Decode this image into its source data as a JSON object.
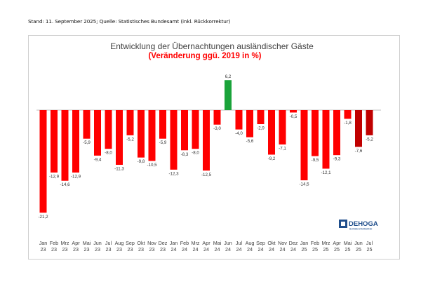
{
  "note": "Stand: 11. September 2025; Quelle: Statistisches Bundesamt (inkl. Rückkorrektur)",
  "logo": {
    "name": "DEHOGA",
    "sub": "BUNDESVERBAND"
  },
  "colors": {
    "negative": "#ff0000",
    "negative_dark": "#c00000",
    "positive": "#1aa33a",
    "title": "#404040",
    "subtitle": "#ff0000"
  },
  "chart_data": {
    "type": "bar",
    "title": "Entwicklung der Übernachtungen ausländischer Gäste",
    "subtitle": "(Veränderung ggü. 2019 in %)",
    "categories": [
      [
        "Jan",
        "23"
      ],
      [
        "Feb",
        "23"
      ],
      [
        "Mrz",
        "23"
      ],
      [
        "Apr",
        "23"
      ],
      [
        "Mai",
        "23"
      ],
      [
        "Jun",
        "23"
      ],
      [
        "Jul",
        "23"
      ],
      [
        "Aug",
        "23"
      ],
      [
        "Sep",
        "23"
      ],
      [
        "Okt",
        "23"
      ],
      [
        "Nov",
        "23"
      ],
      [
        "Dez",
        "23"
      ],
      [
        "Jan",
        "24"
      ],
      [
        "Feb",
        "24"
      ],
      [
        "Mrz",
        "24"
      ],
      [
        "Apr",
        "24"
      ],
      [
        "Mai",
        "24"
      ],
      [
        "Jun",
        "24"
      ],
      [
        "Jul",
        "24"
      ],
      [
        "Aug",
        "24"
      ],
      [
        "Sep",
        "24"
      ],
      [
        "Okt",
        "24"
      ],
      [
        "Nov",
        "24"
      ],
      [
        "Dez",
        "24"
      ],
      [
        "Jan",
        "25"
      ],
      [
        "Feb",
        "25"
      ],
      [
        "Mrz",
        "25"
      ],
      [
        "Apr",
        "25"
      ],
      [
        "Mai",
        "25"
      ],
      [
        "Jun",
        "25"
      ],
      [
        "Jul",
        "25"
      ]
    ],
    "values": [
      -21.2,
      -12.9,
      -14.6,
      -12.9,
      -5.9,
      -9.4,
      -8.0,
      -11.3,
      -5.2,
      -9.8,
      -10.5,
      -5.9,
      -12.3,
      -8.3,
      -8.0,
      -12.5,
      -3.0,
      6.2,
      -4.0,
      -5.6,
      -2.9,
      -9.2,
      -7.1,
      -0.5,
      -14.5,
      -9.5,
      -12.1,
      -9.3,
      -1.8,
      -7.6,
      -5.2
    ],
    "labels": [
      "-21,2",
      "-12,9",
      "-14,6",
      "-12,9",
      "-5,9",
      "-9,4",
      "-8,0",
      "-11,3",
      "-5,2",
      "-9,8",
      "-10,5",
      "-5,9",
      "-12,3",
      "-8,3",
      "-8,0",
      "-12,5",
      "-3,0",
      "6,2",
      "-4,0",
      "-5,6",
      "-2,9",
      "-9,2",
      "-7,1",
      "-0,5",
      "-14,5",
      "-9,5",
      "-12,1",
      "-9,3",
      "-1,8",
      "-7,6",
      "-5,2"
    ],
    "highlight_dark": [
      29,
      30
    ],
    "ylim": [
      -22,
      7
    ],
    "grid": false,
    "legend": "none"
  }
}
